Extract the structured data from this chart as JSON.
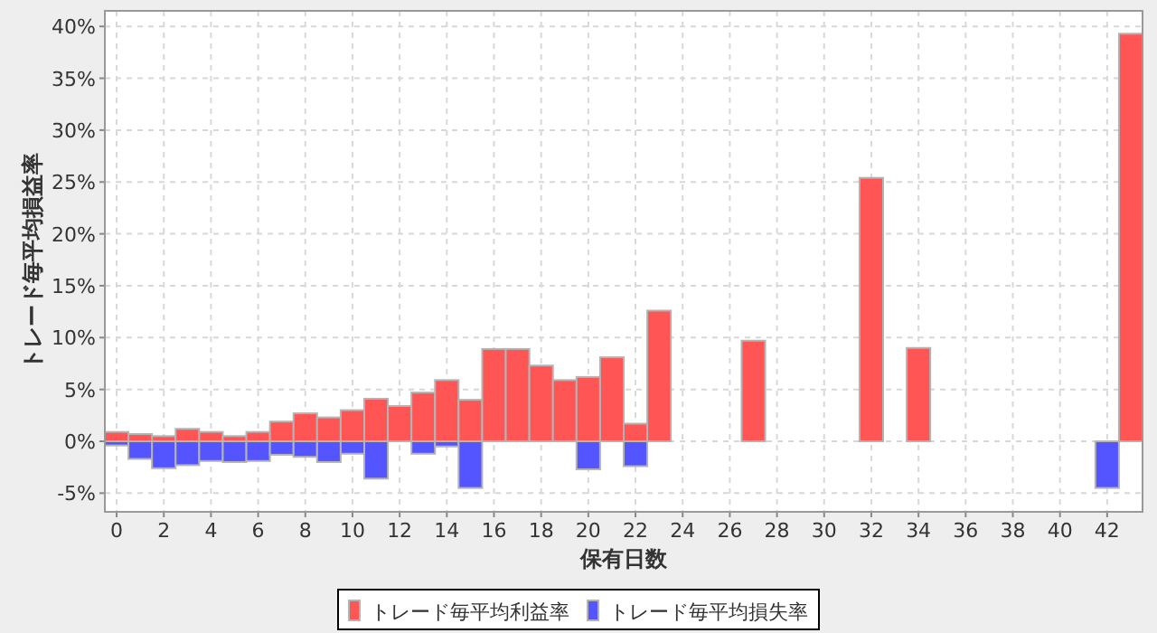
{
  "chart_data": {
    "type": "bar",
    "xlabel": "保有日数",
    "ylabel": "トレード毎平均損益率",
    "series": [
      {
        "name": "トレード毎平均利益率",
        "color": "#ff5555",
        "x": [
          0,
          1,
          2,
          3,
          4,
          5,
          6,
          7,
          8,
          9,
          10,
          11,
          12,
          13,
          14,
          15,
          16,
          17,
          18,
          19,
          20,
          21,
          22,
          23,
          27,
          32,
          34,
          43
        ],
        "values": [
          0.9,
          0.7,
          0.5,
          1.2,
          0.9,
          0.5,
          0.9,
          1.9,
          2.7,
          2.3,
          3.0,
          4.1,
          3.4,
          4.7,
          5.9,
          4.0,
          8.9,
          8.9,
          7.3,
          5.9,
          6.2,
          8.1,
          1.7,
          12.6,
          9.7,
          25.4,
          9.0,
          39.3
        ]
      },
      {
        "name": "トレード毎平均損失率",
        "color": "#5555ff",
        "x": [
          0,
          1,
          2,
          3,
          4,
          5,
          6,
          7,
          8,
          9,
          10,
          11,
          13,
          14,
          15,
          20,
          22,
          42
        ],
        "values": [
          -0.4,
          -1.7,
          -2.6,
          -2.3,
          -1.9,
          -2.0,
          -1.9,
          -1.3,
          -1.5,
          -2.0,
          -1.2,
          -3.6,
          -1.2,
          -0.5,
          -4.5,
          -2.7,
          -2.4,
          -4.5
        ]
      }
    ],
    "xlim": [
      -0.5,
      43.5
    ],
    "ylim": [
      -6.8,
      41.5
    ],
    "xticks": [
      0,
      2,
      4,
      6,
      8,
      10,
      12,
      14,
      16,
      18,
      20,
      22,
      24,
      26,
      28,
      30,
      32,
      34,
      36,
      38,
      40,
      42
    ],
    "yticks": [
      {
        "value": -5,
        "label": "-5%"
      },
      {
        "value": 0,
        "label": "0%"
      },
      {
        "value": 5,
        "label": "5%"
      },
      {
        "value": 10,
        "label": "10%"
      },
      {
        "value": 15,
        "label": "15%"
      },
      {
        "value": 20,
        "label": "20%"
      },
      {
        "value": 25,
        "label": "25%"
      },
      {
        "value": 30,
        "label": "30%"
      },
      {
        "value": 35,
        "label": "35%"
      },
      {
        "value": 40,
        "label": "40%"
      }
    ],
    "grid": true,
    "legend": "bottom"
  }
}
